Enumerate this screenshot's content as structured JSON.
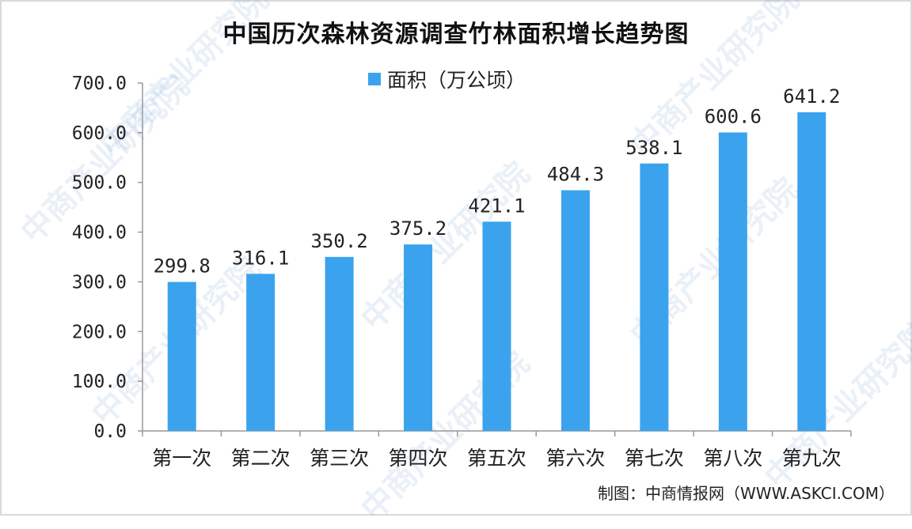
{
  "header": {
    "title": "中国历次森林资源调查竹林面积增长趋势图"
  },
  "legend": {
    "label": "面积（万公顷）"
  },
  "source": {
    "text": "制图：中商情报网（WWW.ASKCI.COM）"
  },
  "watermark": {
    "text": "中商产业研究院"
  },
  "colors": {
    "bar": "#3ba3ee",
    "axis": "#999999",
    "text": "#222222"
  },
  "chart_data": {
    "type": "bar",
    "title": "中国历次森林资源调查竹林面积增长趋势图",
    "categories": [
      "第一次",
      "第二次",
      "第三次",
      "第四次",
      "第五次",
      "第六次",
      "第七次",
      "第八次",
      "第九次"
    ],
    "series": [
      {
        "name": "面积（万公顷）",
        "values": [
          299.8,
          316.1,
          350.2,
          375.2,
          421.1,
          484.3,
          538.1,
          600.6,
          641.2
        ]
      }
    ],
    "value_labels": [
      "299.8",
      "316.1",
      "350.2",
      "375.2",
      "421.1",
      "484.3",
      "538.1",
      "600.6",
      "641.2"
    ],
    "y_ticks": [
      "0.0",
      "100.0",
      "200.0",
      "300.0",
      "400.0",
      "500.0",
      "600.0",
      "700.0"
    ],
    "ylim": [
      0,
      700
    ],
    "xlabel": "",
    "ylabel": "",
    "grid": false,
    "legend_position": "top-center"
  }
}
